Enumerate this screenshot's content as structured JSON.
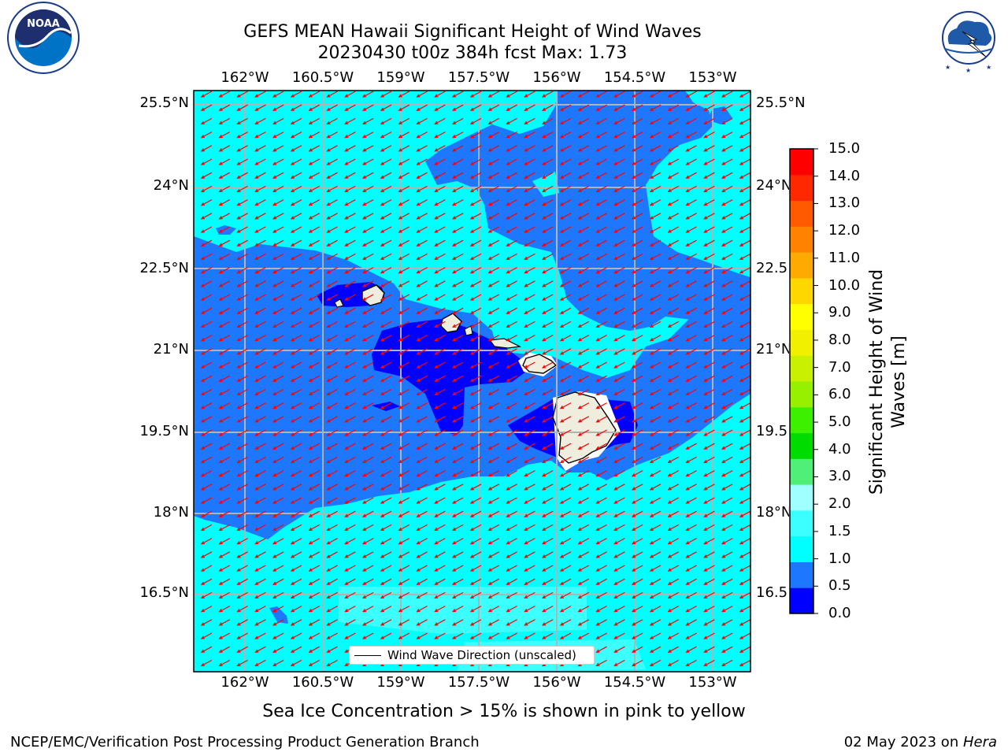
{
  "title": {
    "line1": "GEFS MEAN Hawaii Significant Height of Wind Waves",
    "line2": "20230430 t00z 384h fcst   Max: 1.73"
  },
  "logos": {
    "left": "NOAA",
    "left_ring": "NATIONAL OCEANIC AND ATMOSPHERIC ADMINISTRATION · U.S. DEPARTMENT OF COMMERCE",
    "right_ring": "NATIONAL WEATHER SERVICE"
  },
  "map": {
    "lon_ticks": [
      "162°W",
      "160.5°W",
      "159°W",
      "157.5°W",
      "156°W",
      "154.5°W",
      "153°W"
    ],
    "lat_ticks": [
      "25.5°N",
      "24°N",
      "22.5°N",
      "21°N",
      "19.5°N",
      "18°N",
      "16.5°N"
    ],
    "legend_label": "Wind Wave Direction (unscaled)",
    "arrow_color": "#ff0000"
  },
  "colorbar": {
    "title_line1": "Significant Height of Wind",
    "title_line2": "Waves [m]",
    "labels": [
      "0.0",
      "0.5",
      "1.0",
      "1.5",
      "2.0",
      "3.0",
      "4.0",
      "5.0",
      "6.0",
      "7.0",
      "8.0",
      "9.0",
      "10.0",
      "11.0",
      "12.0",
      "13.0",
      "14.0",
      "15.0"
    ],
    "colors": [
      "#0000ff",
      "#1e78ff",
      "#00ffff",
      "#3cffff",
      "#a0ffff",
      "#50f078",
      "#00dc00",
      "#3cf000",
      "#96f000",
      "#c8f000",
      "#f0f000",
      "#ffff00",
      "#ffd700",
      "#ffaa00",
      "#ff8200",
      "#ff5a00",
      "#ff2800",
      "#ff0000"
    ]
  },
  "footer": {
    "sea_ice_note": "Sea Ice Concentration > 15% is shown in pink to yellow",
    "left": "NCEP/EMC/Verification Post Processing Product Generation Branch",
    "right_prefix": "02 May 2023 on ",
    "right_machine": "Hera"
  }
}
